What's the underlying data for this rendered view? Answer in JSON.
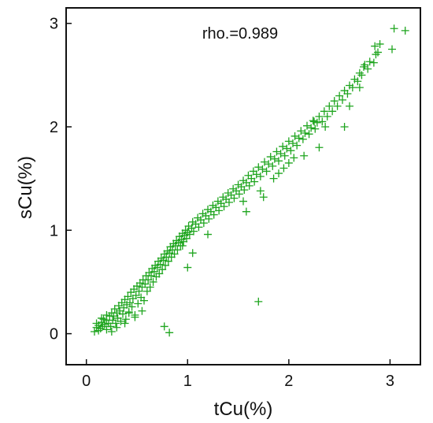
{
  "chart_data": {
    "type": "scatter",
    "title": "",
    "xlabel": "tCu(%)",
    "ylabel": "sCu(%)",
    "xlim": [
      -0.2,
      3.3
    ],
    "ylim": [
      -0.3,
      3.15
    ],
    "x_ticks": [
      0,
      1,
      2,
      3
    ],
    "y_ticks": [
      0,
      1,
      2,
      3
    ],
    "grid": false,
    "annotation": "rho.=0.989",
    "marker_color": "#1fa51f",
    "series": [
      {
        "points": [
          [
            0.08,
            0.02
          ],
          [
            0.1,
            0.06
          ],
          [
            0.1,
            0.1
          ],
          [
            0.12,
            0.03
          ],
          [
            0.12,
            0.08
          ],
          [
            0.14,
            0.05
          ],
          [
            0.15,
            0.11
          ],
          [
            0.16,
            0.07
          ],
          [
            0.17,
            0.14
          ],
          [
            0.18,
            0.09
          ],
          [
            0.2,
            0.04
          ],
          [
            0.2,
            0.13
          ],
          [
            0.22,
            0.1
          ],
          [
            0.23,
            0.17
          ],
          [
            0.24,
            0.07
          ],
          [
            0.25,
            0.2
          ],
          [
            0.26,
            0.13
          ],
          [
            0.27,
            0.17
          ],
          [
            0.28,
            0.24
          ],
          [
            0.29,
            0.1
          ],
          [
            0.3,
            0.2
          ],
          [
            0.31,
            0.15
          ],
          [
            0.32,
            0.27
          ],
          [
            0.33,
            0.22
          ],
          [
            0.34,
            0.12
          ],
          [
            0.35,
            0.3
          ],
          [
            0.36,
            0.19
          ],
          [
            0.37,
            0.25
          ],
          [
            0.38,
            0.33
          ],
          [
            0.39,
            0.14
          ],
          [
            0.4,
            0.28
          ],
          [
            0.41,
            0.36
          ],
          [
            0.42,
            0.21
          ],
          [
            0.43,
            0.3
          ],
          [
            0.44,
            0.4
          ],
          [
            0.45,
            0.26
          ],
          [
            0.46,
            0.34
          ],
          [
            0.47,
            0.43
          ],
          [
            0.48,
            0.18
          ],
          [
            0.49,
            0.37
          ],
          [
            0.5,
            0.46
          ],
          [
            0.51,
            0.29
          ],
          [
            0.52,
            0.41
          ],
          [
            0.53,
            0.49
          ],
          [
            0.54,
            0.35
          ],
          [
            0.55,
            0.45
          ],
          [
            0.56,
            0.52
          ],
          [
            0.57,
            0.32
          ],
          [
            0.58,
            0.48
          ],
          [
            0.59,
            0.56
          ],
          [
            0.6,
            0.41
          ],
          [
            0.61,
            0.52
          ],
          [
            0.62,
            0.59
          ],
          [
            0.63,
            0.45
          ],
          [
            0.64,
            0.56
          ],
          [
            0.65,
            0.63
          ],
          [
            0.66,
            0.5
          ],
          [
            0.67,
            0.6
          ],
          [
            0.68,
            0.66
          ],
          [
            0.69,
            0.55
          ],
          [
            0.7,
            0.64
          ],
          [
            0.71,
            0.7
          ],
          [
            0.72,
            0.58
          ],
          [
            0.73,
            0.67
          ],
          [
            0.74,
            0.73
          ],
          [
            0.75,
            0.62
          ],
          [
            0.76,
            0.71
          ],
          [
            0.77,
            0.77
          ],
          [
            0.78,
            0.66
          ],
          [
            0.79,
            0.74
          ],
          [
            0.8,
            0.8
          ],
          [
            0.81,
            0.7
          ],
          [
            0.82,
            0.78
          ],
          [
            0.83,
            0.84
          ],
          [
            0.84,
            0.74
          ],
          [
            0.85,
            0.81
          ],
          [
            0.86,
            0.87
          ],
          [
            0.87,
            0.77
          ],
          [
            0.88,
            0.85
          ],
          [
            0.89,
            0.9
          ],
          [
            0.9,
            0.81
          ],
          [
            0.91,
            0.88
          ],
          [
            0.92,
            0.94
          ],
          [
            0.93,
            0.85
          ],
          [
            0.94,
            0.91
          ],
          [
            0.95,
            0.97
          ],
          [
            0.96,
            0.89
          ],
          [
            0.97,
            0.95
          ],
          [
            0.98,
            1.0
          ],
          [
            0.99,
            0.92
          ],
          [
            1.0,
            0.98
          ],
          [
            1.01,
            1.04
          ],
          [
            1.02,
            0.96
          ],
          [
            1.04,
            1.02
          ],
          [
            1.05,
            1.08
          ],
          [
            1.06,
            0.99
          ],
          [
            1.08,
            1.06
          ],
          [
            1.1,
            1.12
          ],
          [
            1.11,
            1.03
          ],
          [
            1.13,
            1.1
          ],
          [
            1.15,
            1.16
          ],
          [
            1.16,
            1.07
          ],
          [
            1.18,
            1.14
          ],
          [
            1.2,
            1.2
          ],
          [
            1.21,
            1.11
          ],
          [
            1.23,
            1.18
          ],
          [
            1.25,
            1.24
          ],
          [
            1.26,
            1.15
          ],
          [
            1.28,
            1.22
          ],
          [
            1.3,
            1.28
          ],
          [
            1.31,
            1.19
          ],
          [
            1.33,
            1.26
          ],
          [
            1.35,
            1.32
          ],
          [
            1.36,
            1.23
          ],
          [
            1.38,
            1.3
          ],
          [
            1.4,
            1.36
          ],
          [
            1.41,
            1.27
          ],
          [
            1.43,
            1.34
          ],
          [
            1.45,
            1.4
          ],
          [
            1.46,
            1.31
          ],
          [
            1.48,
            1.38
          ],
          [
            1.5,
            1.44
          ],
          [
            1.51,
            1.35
          ],
          [
            1.53,
            1.42
          ],
          [
            1.55,
            1.48
          ],
          [
            1.56,
            1.39
          ],
          [
            1.58,
            1.46
          ],
          [
            1.6,
            1.53
          ],
          [
            1.61,
            1.43
          ],
          [
            1.63,
            1.5
          ],
          [
            1.65,
            1.57
          ],
          [
            1.66,
            1.47
          ],
          [
            1.68,
            1.54
          ],
          [
            1.7,
            1.61
          ],
          [
            1.72,
            1.52
          ],
          [
            1.74,
            1.59
          ],
          [
            1.76,
            1.66
          ],
          [
            1.78,
            1.57
          ],
          [
            1.8,
            1.64
          ],
          [
            1.82,
            1.71
          ],
          [
            1.84,
            1.62
          ],
          [
            1.86,
            1.69
          ],
          [
            1.88,
            1.76
          ],
          [
            1.9,
            1.67
          ],
          [
            1.92,
            1.74
          ],
          [
            1.94,
            1.81
          ],
          [
            1.96,
            1.72
          ],
          [
            1.98,
            1.79
          ],
          [
            2.0,
            1.86
          ],
          [
            2.02,
            1.77
          ],
          [
            2.04,
            1.84
          ],
          [
            2.06,
            1.91
          ],
          [
            2.08,
            1.82
          ],
          [
            2.1,
            1.89
          ],
          [
            2.12,
            1.96
          ],
          [
            2.14,
            1.88
          ],
          [
            2.16,
            1.94
          ],
          [
            2.18,
            2.01
          ],
          [
            2.2,
            1.93
          ],
          [
            2.22,
            1.99
          ],
          [
            2.24,
            2.06
          ],
          [
            2.26,
            1.98
          ],
          [
            2.28,
            2.04
          ],
          [
            2.3,
            2.1
          ],
          [
            2.33,
            2.05
          ],
          [
            2.35,
            2.15
          ],
          [
            2.38,
            2.1
          ],
          [
            2.4,
            2.2
          ],
          [
            2.43,
            2.15
          ],
          [
            2.45,
            2.25
          ],
          [
            2.48,
            2.2
          ],
          [
            2.5,
            2.3
          ],
          [
            2.53,
            2.26
          ],
          [
            2.55,
            2.35
          ],
          [
            2.58,
            2.32
          ],
          [
            2.6,
            2.4
          ],
          [
            2.63,
            2.38
          ],
          [
            2.65,
            2.46
          ],
          [
            2.68,
            2.44
          ],
          [
            2.7,
            2.52
          ],
          [
            2.72,
            2.5
          ],
          [
            2.74,
            2.58
          ],
          [
            2.78,
            2.56
          ],
          [
            2.8,
            2.63
          ],
          [
            2.84,
            2.62
          ],
          [
            2.86,
            2.7
          ],
          [
            2.3,
            1.8
          ],
          [
            2.15,
            1.72
          ],
          [
            1.95,
            1.6
          ],
          [
            2.0,
            1.65
          ],
          [
            1.72,
            1.38
          ],
          [
            1.75,
            1.32
          ],
          [
            1.55,
            1.28
          ],
          [
            1.58,
            1.18
          ],
          [
            1.2,
            0.96
          ],
          [
            1.05,
            0.78
          ],
          [
            1.0,
            0.64
          ],
          [
            0.95,
            0.85
          ],
          [
            0.48,
            0.16
          ],
          [
            0.42,
            0.2
          ],
          [
            0.55,
            0.22
          ],
          [
            0.38,
            0.1
          ],
          [
            0.25,
            0.02
          ],
          [
            0.3,
            0.06
          ],
          [
            0.15,
            0.15
          ],
          [
            0.2,
            0.18
          ],
          [
            2.55,
            2.0
          ],
          [
            2.6,
            2.2
          ],
          [
            2.7,
            2.38
          ],
          [
            2.75,
            2.6
          ],
          [
            2.88,
            2.72
          ],
          [
            3.02,
            2.75
          ],
          [
            2.85,
            2.78
          ],
          [
            2.9,
            2.8
          ],
          [
            3.04,
            2.95
          ],
          [
            3.15,
            2.93
          ],
          [
            0.77,
            0.07
          ],
          [
            0.82,
            0.01
          ],
          [
            1.7,
            0.31
          ],
          [
            2.25,
            2.05
          ],
          [
            2.36,
            2.0
          ],
          [
            1.9,
            1.55
          ],
          [
            1.85,
            1.5
          ],
          [
            2.05,
            1.7
          ]
        ]
      }
    ]
  }
}
